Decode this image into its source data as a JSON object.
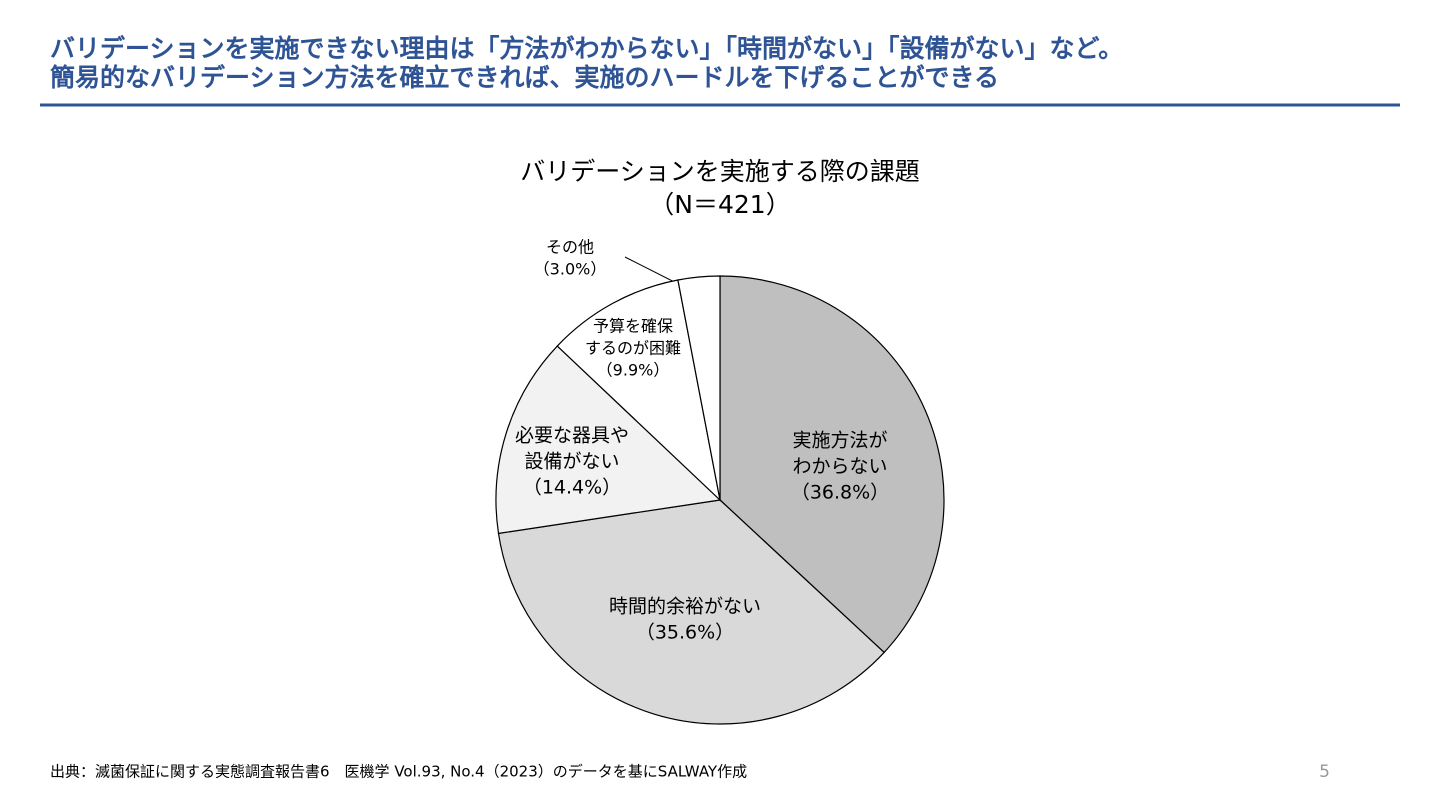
{
  "header": {
    "title_lines": [
      "バリデーションを実施できない理由は「方法がわからない」「時間がない」「設備がない」など。",
      "簡易的なバリデーション方法を確立できれば、実施のハードルを下げることができる"
    ]
  },
  "chart_data": {
    "type": "pie",
    "title_lines": [
      "バリデーションを実施する際の課題",
      "（N＝421）"
    ],
    "categories": [
      [
        "実施方法が",
        "わからない"
      ],
      [
        "時間的余裕がない"
      ],
      [
        "必要な器具や",
        "設備がない"
      ],
      [
        "予算を確保",
        "するのが困難"
      ],
      [
        "その他"
      ]
    ],
    "values": [
      36.8,
      35.6,
      14.4,
      9.9,
      3.0
    ],
    "value_labels": [
      "（36.8%）",
      "（35.6%）",
      "（14.4%）",
      "（9.9%）",
      "（3.0%）"
    ],
    "colors": [
      "#bfbfbf",
      "#d9d9d9",
      "#f2f2f2",
      "#ffffff",
      "#ffffff"
    ]
  },
  "footer": {
    "source": "出典：滅菌保証に関する実態調査報告書6　医機学 Vol.93, No.4（2023）のデータを基にSALWAY作成",
    "page_number": "5"
  }
}
